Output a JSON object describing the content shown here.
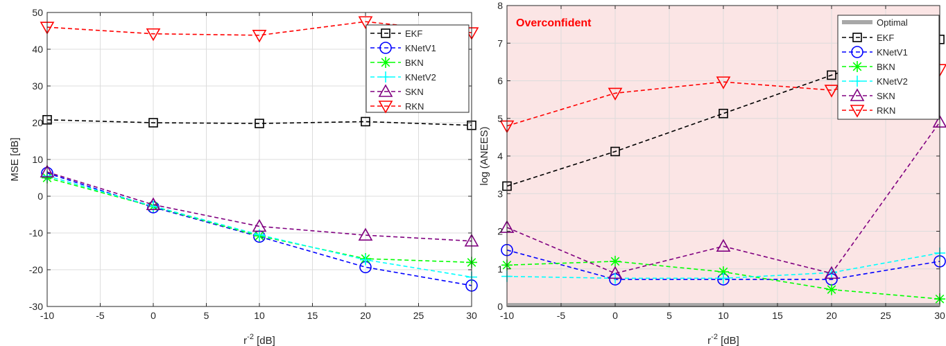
{
  "chart_data": [
    {
      "type": "line",
      "title": "",
      "xlabel_base": "r",
      "xlabel_sup": "-2",
      "xlabel_unit": " [dB]",
      "ylabel": "MSE [dB]",
      "xlim": [
        -10,
        30
      ],
      "ylim": [
        -30,
        50
      ],
      "x_ticks": [
        -10,
        -5,
        0,
        5,
        10,
        15,
        20,
        25,
        30
      ],
      "y_ticks": [
        -30,
        -20,
        -10,
        0,
        10,
        20,
        30,
        40,
        50
      ],
      "grid": true,
      "legend_position": "top-right",
      "x": [
        -10,
        0,
        10,
        20,
        30
      ],
      "series": [
        {
          "name": "EKF",
          "color": "#000000",
          "marker": "square",
          "values": [
            20.8,
            20.0,
            19.8,
            20.3,
            19.3
          ]
        },
        {
          "name": "KNetV1",
          "color": "#0000ff",
          "marker": "circle",
          "values": [
            6.3,
            -3.0,
            -11.0,
            -19.3,
            -24.3
          ]
        },
        {
          "name": "BKN",
          "color": "#00ff00",
          "marker": "asterisk",
          "values": [
            5.0,
            -2.8,
            -10.8,
            -17.0,
            -18.0
          ]
        },
        {
          "name": "KNetV2",
          "color": "#00ffff",
          "marker": "plus",
          "values": [
            5.5,
            -2.7,
            -10.5,
            -17.3,
            -22.0
          ]
        },
        {
          "name": "SKN",
          "color": "#800080",
          "marker": "triangle-up",
          "values": [
            6.6,
            -2.3,
            -8.2,
            -10.6,
            -12.2
          ]
        },
        {
          "name": "RKN",
          "color": "#ff0000",
          "marker": "triangle-down",
          "values": [
            46.0,
            44.2,
            43.8,
            47.5,
            44.5
          ]
        }
      ]
    },
    {
      "type": "line",
      "title": "",
      "xlabel_base": "r",
      "xlabel_sup": "-2",
      "xlabel_unit": " [dB]",
      "ylabel": "log (ANEES)",
      "xlim": [
        -10,
        30
      ],
      "ylim": [
        0,
        8
      ],
      "x_ticks": [
        -10,
        -5,
        0,
        5,
        10,
        15,
        20,
        25,
        30
      ],
      "y_ticks": [
        0,
        1,
        2,
        3,
        4,
        5,
        6,
        7,
        8
      ],
      "grid": true,
      "legend_position": "top-right",
      "background_color": "#fbe5e5",
      "annotation": "Overconfident",
      "annotation_color": "#ff0000",
      "optimal_label": "Optimal",
      "optimal_color": "#a8a8a8",
      "optimal_value": 0,
      "x": [
        -10,
        0,
        10,
        20,
        30
      ],
      "series": [
        {
          "name": "EKF",
          "color": "#000000",
          "marker": "square",
          "values": [
            3.2,
            4.12,
            5.13,
            6.15,
            7.1
          ]
        },
        {
          "name": "KNetV1",
          "color": "#0000ff",
          "marker": "circle",
          "values": [
            1.5,
            0.72,
            0.72,
            0.72,
            1.2
          ]
        },
        {
          "name": "BKN",
          "color": "#00ff00",
          "marker": "asterisk",
          "values": [
            1.1,
            1.2,
            0.92,
            0.45,
            0.2
          ]
        },
        {
          "name": "KNetV2",
          "color": "#00ffff",
          "marker": "plus",
          "values": [
            0.8,
            0.75,
            0.75,
            0.9,
            1.42
          ]
        },
        {
          "name": "SKN",
          "color": "#800080",
          "marker": "triangle-up",
          "values": [
            2.1,
            0.88,
            1.6,
            0.88,
            4.9
          ]
        },
        {
          "name": "RKN",
          "color": "#ff0000",
          "marker": "triangle-down",
          "values": [
            4.8,
            5.67,
            5.97,
            5.75,
            6.3
          ]
        }
      ]
    }
  ]
}
